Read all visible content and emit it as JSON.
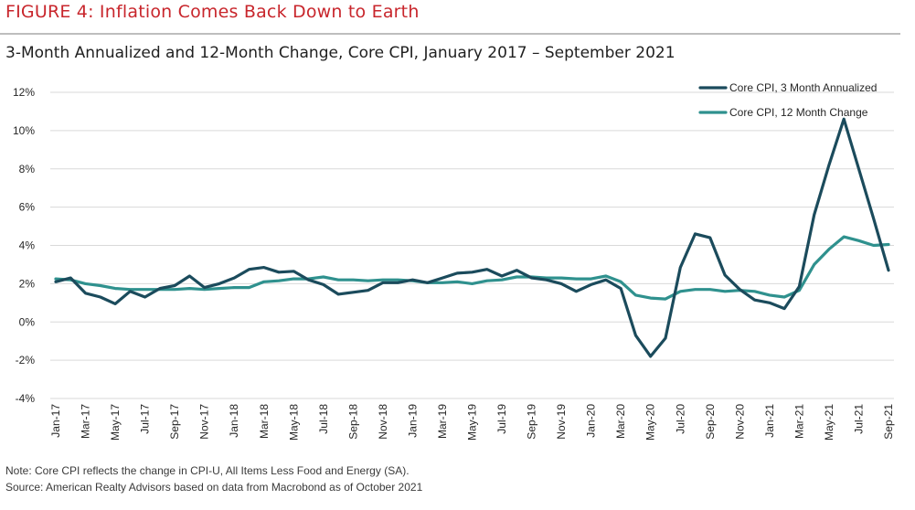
{
  "figure_label": "FIGURE 4: Inflation Comes Back Down to Earth",
  "subtitle": "3-Month Annualized and 12-Month Change, Core CPI, January 2017 – September 2021",
  "notes": {
    "note": "Note: Core CPI reflects the change in CPI-U, All Items Less Food and Energy (SA).",
    "source": "Source: American Realty Advisors based on data from Macrobond as of October 2021"
  },
  "colors": {
    "figure_label": "#c8262c",
    "three_month": "#1b4b5c",
    "twelve_month": "#2f918e",
    "rule": "#bdbdbd"
  },
  "chart_data": {
    "type": "line",
    "title": "",
    "xlabel": "",
    "ylabel": "",
    "ylim": [
      -4,
      12
    ],
    "yticks": [
      -4,
      -2,
      0,
      2,
      4,
      6,
      8,
      10,
      12
    ],
    "ytick_labels": [
      "-4%",
      "-2%",
      "0%",
      "2%",
      "4%",
      "6%",
      "8%",
      "10%",
      "12%"
    ],
    "grid": true,
    "legend_position": "top-right",
    "x": [
      "Jan-17",
      "Feb-17",
      "Mar-17",
      "Apr-17",
      "May-17",
      "Jun-17",
      "Jul-17",
      "Aug-17",
      "Sep-17",
      "Oct-17",
      "Nov-17",
      "Dec-17",
      "Jan-18",
      "Feb-18",
      "Mar-18",
      "Apr-18",
      "May-18",
      "Jun-18",
      "Jul-18",
      "Aug-18",
      "Sep-18",
      "Oct-18",
      "Nov-18",
      "Dec-18",
      "Jan-19",
      "Feb-19",
      "Mar-19",
      "Apr-19",
      "May-19",
      "Jun-19",
      "Jul-19",
      "Aug-19",
      "Sep-19",
      "Oct-19",
      "Nov-19",
      "Dec-19",
      "Jan-20",
      "Feb-20",
      "Mar-20",
      "Apr-20",
      "May-20",
      "Jun-20",
      "Jul-20",
      "Aug-20",
      "Sep-20",
      "Oct-20",
      "Nov-20",
      "Dec-20",
      "Jan-21",
      "Feb-21",
      "Mar-21",
      "Apr-21",
      "May-21",
      "Jun-21",
      "Jul-21",
      "Aug-21",
      "Sep-21"
    ],
    "x_tick_labels": [
      "Jan-17",
      "Mar-17",
      "May-17",
      "Jul-17",
      "Sep-17",
      "Nov-17",
      "Jan-18",
      "Mar-18",
      "May-18",
      "Jul-18",
      "Sep-18",
      "Nov-18",
      "Jan-19",
      "Mar-19",
      "May-19",
      "Jul-19",
      "Sep-19",
      "Nov-19",
      "Jan-20",
      "Mar-20",
      "May-20",
      "Jul-20",
      "Sep-20",
      "Nov-20",
      "Jan-21",
      "Mar-21",
      "May-21",
      "Jul-21",
      "Sep-21"
    ],
    "series": [
      {
        "name": "Core CPI, 3 Month Annualized",
        "color": "#1b4b5c",
        "values": [
          2.1,
          2.3,
          1.5,
          1.3,
          0.95,
          1.6,
          1.3,
          1.75,
          1.9,
          2.4,
          1.8,
          2.0,
          2.3,
          2.75,
          2.85,
          2.6,
          2.65,
          2.2,
          1.95,
          1.45,
          1.55,
          1.65,
          2.05,
          2.05,
          2.2,
          2.05,
          2.3,
          2.55,
          2.6,
          2.75,
          2.4,
          2.7,
          2.3,
          2.2,
          2.0,
          1.6,
          1.95,
          2.2,
          1.75,
          -0.7,
          -1.8,
          -0.85,
          2.85,
          4.6,
          4.4,
          2.45,
          1.7,
          1.15,
          1.0,
          0.7,
          1.85,
          5.6,
          8.2,
          10.6,
          8.0,
          5.4,
          2.7
        ]
      },
      {
        "name": "Core CPI, 12 Month Change",
        "color": "#2f918e",
        "values": [
          2.25,
          2.2,
          2.0,
          1.9,
          1.75,
          1.7,
          1.7,
          1.7,
          1.7,
          1.75,
          1.7,
          1.75,
          1.8,
          1.8,
          2.1,
          2.15,
          2.25,
          2.25,
          2.35,
          2.2,
          2.2,
          2.15,
          2.2,
          2.2,
          2.15,
          2.05,
          2.05,
          2.1,
          2.0,
          2.15,
          2.2,
          2.35,
          2.35,
          2.3,
          2.3,
          2.25,
          2.25,
          2.4,
          2.1,
          1.4,
          1.25,
          1.2,
          1.6,
          1.7,
          1.7,
          1.6,
          1.65,
          1.6,
          1.4,
          1.3,
          1.65,
          3.0,
          3.8,
          4.45,
          4.25,
          4.0,
          4.05
        ]
      }
    ]
  }
}
